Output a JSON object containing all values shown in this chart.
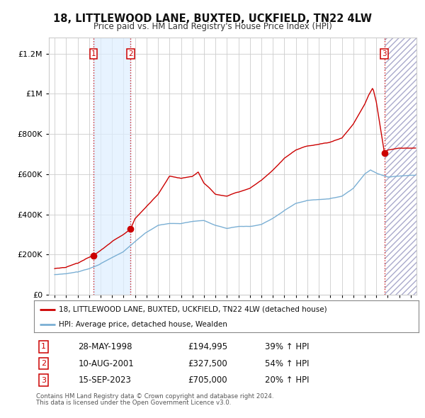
{
  "title": "18, LITTLEWOOD LANE, BUXTED, UCKFIELD, TN22 4LW",
  "subtitle": "Price paid vs. HM Land Registry's House Price Index (HPI)",
  "legend_line1": "18, LITTLEWOOD LANE, BUXTED, UCKFIELD, TN22 4LW (detached house)",
  "legend_line2": "HPI: Average price, detached house, Wealden",
  "transactions": [
    {
      "num": 1,
      "date": "28-MAY-1998",
      "price": 194995,
      "year": 1998.38,
      "pct": "39%",
      "dir": "↑"
    },
    {
      "num": 2,
      "date": "10-AUG-2001",
      "price": 327500,
      "year": 2001.61,
      "pct": "54%",
      "dir": "↑"
    },
    {
      "num": 3,
      "date": "15-SEP-2023",
      "price": 705000,
      "year": 2023.71,
      "pct": "20%",
      "dir": "↑"
    }
  ],
  "footnote1": "Contains HM Land Registry data © Crown copyright and database right 2024.",
  "footnote2": "This data is licensed under the Open Government Licence v3.0.",
  "red_color": "#cc0000",
  "blue_color": "#7aafd4",
  "grid_color": "#cccccc",
  "ylim": [
    0,
    1280000
  ],
  "yticks": [
    0,
    200000,
    400000,
    600000,
    800000,
    1000000,
    1200000
  ],
  "xmin": 1994.5,
  "xmax": 2026.5
}
